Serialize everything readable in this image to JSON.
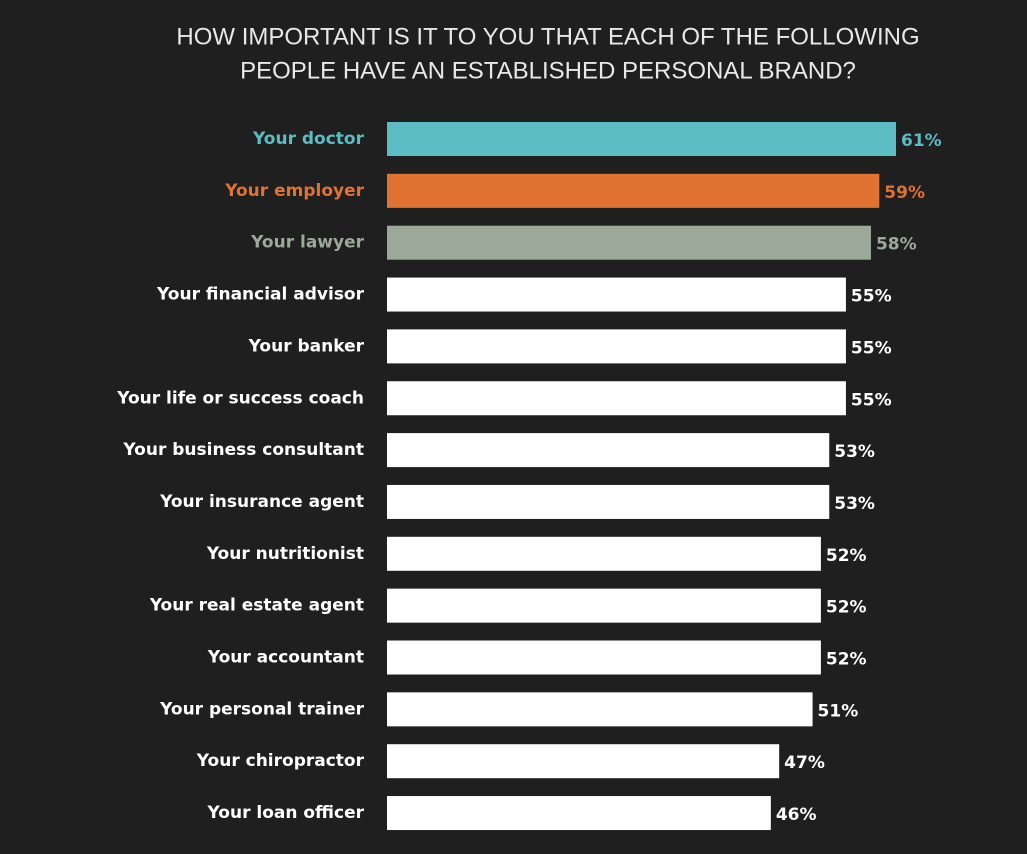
{
  "chart_data": {
    "type": "bar",
    "orientation": "horizontal",
    "title": [
      "HOW IMPORTANT IS IT TO YOU THAT EACH OF THE FOLLOWING",
      "PEOPLE HAVE AN ESTABLISHED PERSONAL BRAND?"
    ],
    "categories": [
      "Your doctor",
      "Your employer",
      "Your lawyer",
      "Your financial advisor",
      "Your banker",
      "Your life or success coach",
      "Your business consultant",
      "Your insurance agent",
      "Your nutritionist",
      "Your real estate agent",
      "Your accountant",
      "Your personal trainer",
      "Your chiropractor",
      "Your loan officer"
    ],
    "values": [
      61,
      59,
      58,
      55,
      55,
      55,
      53,
      53,
      52,
      52,
      52,
      51,
      47,
      46
    ],
    "value_labels": [
      "61%",
      "59%",
      "58%",
      "55%",
      "55%",
      "55%",
      "53%",
      "53%",
      "52%",
      "52%",
      "52%",
      "51%",
      "47%",
      "46%"
    ],
    "colors": [
      "#5bbcc4",
      "#e07232",
      "#9ba998",
      "#ffffff",
      "#ffffff",
      "#ffffff",
      "#ffffff",
      "#ffffff",
      "#ffffff",
      "#ffffff",
      "#ffffff",
      "#ffffff",
      "#ffffff",
      "#ffffff"
    ]
  }
}
